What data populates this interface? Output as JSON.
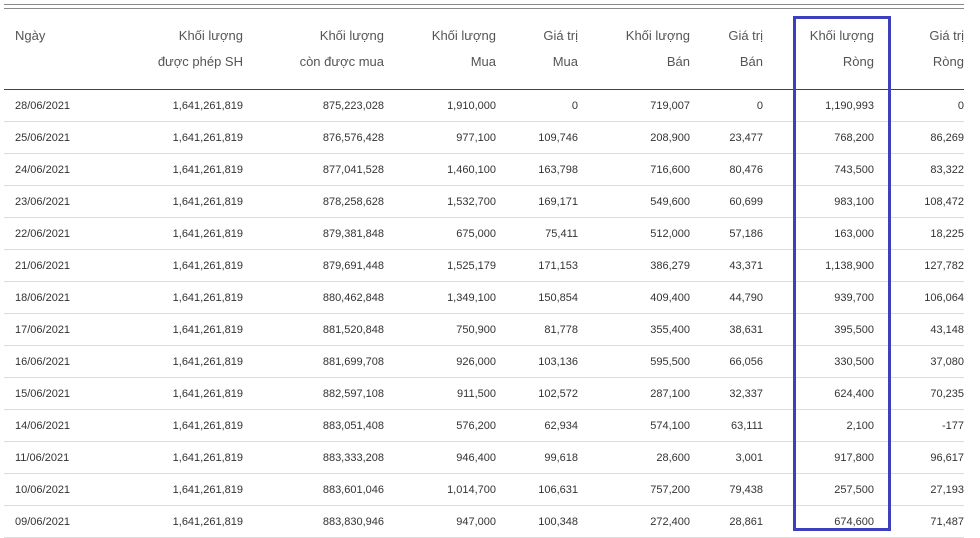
{
  "table": {
    "columns": [
      {
        "key": "date",
        "lines": [
          "Ngày"
        ],
        "align": "left"
      },
      {
        "key": "allowed",
        "lines": [
          "Khối lượng",
          "được phép SH"
        ],
        "align": "right"
      },
      {
        "key": "remaining",
        "lines": [
          "Khối lượng",
          "còn được mua"
        ],
        "align": "right"
      },
      {
        "key": "buy_vol",
        "lines": [
          "Khối lượng",
          "Mua"
        ],
        "align": "right"
      },
      {
        "key": "buy_val",
        "lines": [
          "Giá trị",
          "Mua"
        ],
        "align": "right"
      },
      {
        "key": "sell_vol",
        "lines": [
          "Khối lượng",
          "Bán"
        ],
        "align": "right"
      },
      {
        "key": "sell_val",
        "lines": [
          "Giá trị",
          "Bán"
        ],
        "align": "right"
      },
      {
        "key": "net_vol",
        "lines": [
          "Khối lượng",
          "Ròng"
        ],
        "align": "right"
      },
      {
        "key": "net_val",
        "lines": [
          "Giá trị",
          "Ròng"
        ],
        "align": "right"
      }
    ],
    "rows": [
      [
        "28/06/2021",
        "1,641,261,819",
        "875,223,028",
        "1,910,000",
        "0",
        "719,007",
        "0",
        "1,190,993",
        "0"
      ],
      [
        "25/06/2021",
        "1,641,261,819",
        "876,576,428",
        "977,100",
        "109,746",
        "208,900",
        "23,477",
        "768,200",
        "86,269"
      ],
      [
        "24/06/2021",
        "1,641,261,819",
        "877,041,528",
        "1,460,100",
        "163,798",
        "716,600",
        "80,476",
        "743,500",
        "83,322"
      ],
      [
        "23/06/2021",
        "1,641,261,819",
        "878,258,628",
        "1,532,700",
        "169,171",
        "549,600",
        "60,699",
        "983,100",
        "108,472"
      ],
      [
        "22/06/2021",
        "1,641,261,819",
        "879,381,848",
        "675,000",
        "75,411",
        "512,000",
        "57,186",
        "163,000",
        "18,225"
      ],
      [
        "21/06/2021",
        "1,641,261,819",
        "879,691,448",
        "1,525,179",
        "171,153",
        "386,279",
        "43,371",
        "1,138,900",
        "127,782"
      ],
      [
        "18/06/2021",
        "1,641,261,819",
        "880,462,848",
        "1,349,100",
        "150,854",
        "409,400",
        "44,790",
        "939,700",
        "106,064"
      ],
      [
        "17/06/2021",
        "1,641,261,819",
        "881,520,848",
        "750,900",
        "81,778",
        "355,400",
        "38,631",
        "395,500",
        "43,148"
      ],
      [
        "16/06/2021",
        "1,641,261,819",
        "881,699,708",
        "926,000",
        "103,136",
        "595,500",
        "66,056",
        "330,500",
        "37,080"
      ],
      [
        "15/06/2021",
        "1,641,261,819",
        "882,597,108",
        "911,500",
        "102,572",
        "287,100",
        "32,337",
        "624,400",
        "70,235"
      ],
      [
        "14/06/2021",
        "1,641,261,819",
        "883,051,408",
        "576,200",
        "62,934",
        "574,100",
        "63,111",
        "2,100",
        "-177"
      ],
      [
        "11/06/2021",
        "1,641,261,819",
        "883,333,208",
        "946,400",
        "99,618",
        "28,600",
        "3,001",
        "917,800",
        "96,617"
      ],
      [
        "10/06/2021",
        "1,641,261,819",
        "883,601,046",
        "1,014,700",
        "106,631",
        "757,200",
        "79,438",
        "257,500",
        "27,193"
      ],
      [
        "09/06/2021",
        "1,641,261,819",
        "883,830,946",
        "947,000",
        "100,348",
        "272,400",
        "28,861",
        "674,600",
        "71,487"
      ]
    ]
  },
  "highlight": {
    "column_key": "net_vol",
    "color": "#3c3fbe"
  }
}
